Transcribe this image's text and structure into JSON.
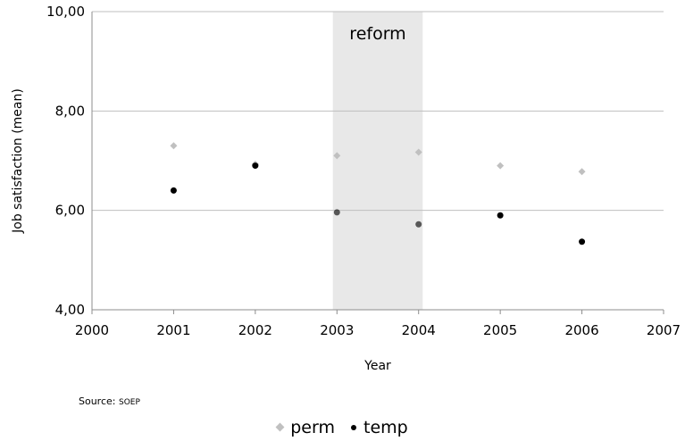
{
  "chart_data": {
    "type": "scatter",
    "title": "",
    "xlabel": "Year",
    "ylabel": "Job satisfaction (mean)",
    "xlim": [
      2000,
      2007
    ],
    "ylim": [
      4,
      10
    ],
    "x_ticks": [
      "2000",
      "2001",
      "2002",
      "2003",
      "2004",
      "2005",
      "2006",
      "2007"
    ],
    "y_ticks": [
      "4,00",
      "6,00",
      "8,00",
      "10,00"
    ],
    "grid": "horizontal",
    "legend_position": "bottom",
    "shaded_region": {
      "label": "reform",
      "from": 2002.95,
      "to": 2004.05,
      "color": "#e8e8e8"
    },
    "series": [
      {
        "name": "perm",
        "marker": "diamond",
        "color": "#c0c0c0",
        "x": [
          2001,
          2002,
          2003,
          2004,
          2005,
          2006
        ],
        "y": [
          7.3,
          6.93,
          7.1,
          7.17,
          6.9,
          6.78
        ]
      },
      {
        "name": "temp",
        "marker": "circle",
        "color": "#000000",
        "x": [
          2001,
          2002,
          2003,
          2004,
          2005,
          2006
        ],
        "y": [
          6.4,
          6.9,
          5.96,
          5.72,
          5.9,
          5.37
        ]
      }
    ]
  },
  "source": {
    "prefix": "Source: ",
    "name": "SOEP"
  }
}
